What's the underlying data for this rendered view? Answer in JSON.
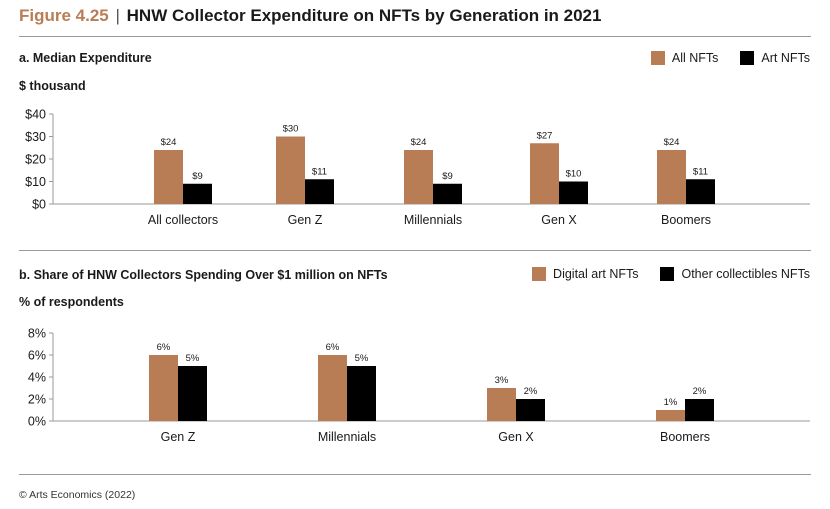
{
  "header": {
    "figure_label": "Figure 4.25",
    "separator": "|",
    "title": "HNW Collector Expenditure on NFTs by Generation in 2021"
  },
  "colors": {
    "accent": "#b97d55",
    "secondary": "#000000",
    "axis": "#9a9a9a"
  },
  "chart_data": [
    {
      "type": "bar",
      "title": "a. Median Expenditure",
      "ylabel": "$ thousand",
      "xlabel": "",
      "categories": [
        "All collectors",
        "Gen Z",
        "Millennials",
        "Gen X",
        "Boomers"
      ],
      "series": [
        {
          "name": "All NFTs",
          "color": "#b97d55",
          "values": [
            24,
            30,
            24,
            27,
            24
          ],
          "labels": [
            "$24",
            "$30",
            "$24",
            "$27",
            "$24"
          ]
        },
        {
          "name": "Art NFTs",
          "color": "#000000",
          "values": [
            9,
            11,
            9,
            10,
            11
          ],
          "labels": [
            "$9",
            "$11",
            "$9",
            "$10",
            "$11"
          ]
        }
      ],
      "ylim": [
        0,
        40
      ],
      "yticks": [
        0,
        10,
        20,
        30,
        40
      ],
      "ytick_labels": [
        "$0",
        "$10",
        "$20",
        "$30",
        "$40"
      ],
      "grid": false,
      "legend": "top-right"
    },
    {
      "type": "bar",
      "title": "b. Share of HNW Collectors Spending Over $1 million on NFTs",
      "ylabel": "% of respondents",
      "xlabel": "",
      "categories": [
        "Gen Z",
        "Millennials",
        "Gen X",
        "Boomers"
      ],
      "series": [
        {
          "name": "Digital art NFTs",
          "color": "#b97d55",
          "values": [
            6,
            6,
            3,
            1
          ],
          "labels": [
            "6%",
            "6%",
            "3%",
            "1%"
          ]
        },
        {
          "name": "Other collectibles NFTs",
          "color": "#000000",
          "values": [
            5,
            5,
            2,
            2
          ],
          "labels": [
            "5%",
            "5%",
            "2%",
            "2%"
          ]
        }
      ],
      "ylim": [
        0,
        8
      ],
      "yticks": [
        0,
        2,
        4,
        6,
        8
      ],
      "ytick_labels": [
        "0%",
        "2%",
        "4%",
        "6%",
        "8%"
      ],
      "grid": false,
      "legend": "top-right"
    }
  ],
  "footer": {
    "credit": "© Arts Economics (2022)"
  }
}
